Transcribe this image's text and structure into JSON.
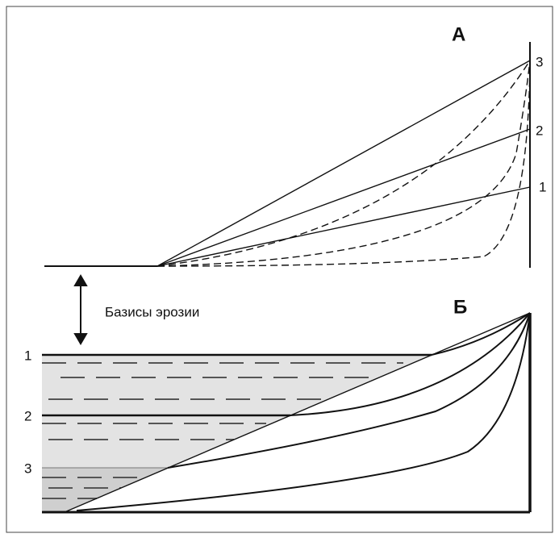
{
  "panels": {
    "top": "А",
    "bottom": "Б"
  },
  "top_levels": [
    "1",
    "2",
    "3"
  ],
  "bottom_levels": [
    "1",
    "2",
    "3"
  ],
  "caption": "Базисы эрозии"
}
